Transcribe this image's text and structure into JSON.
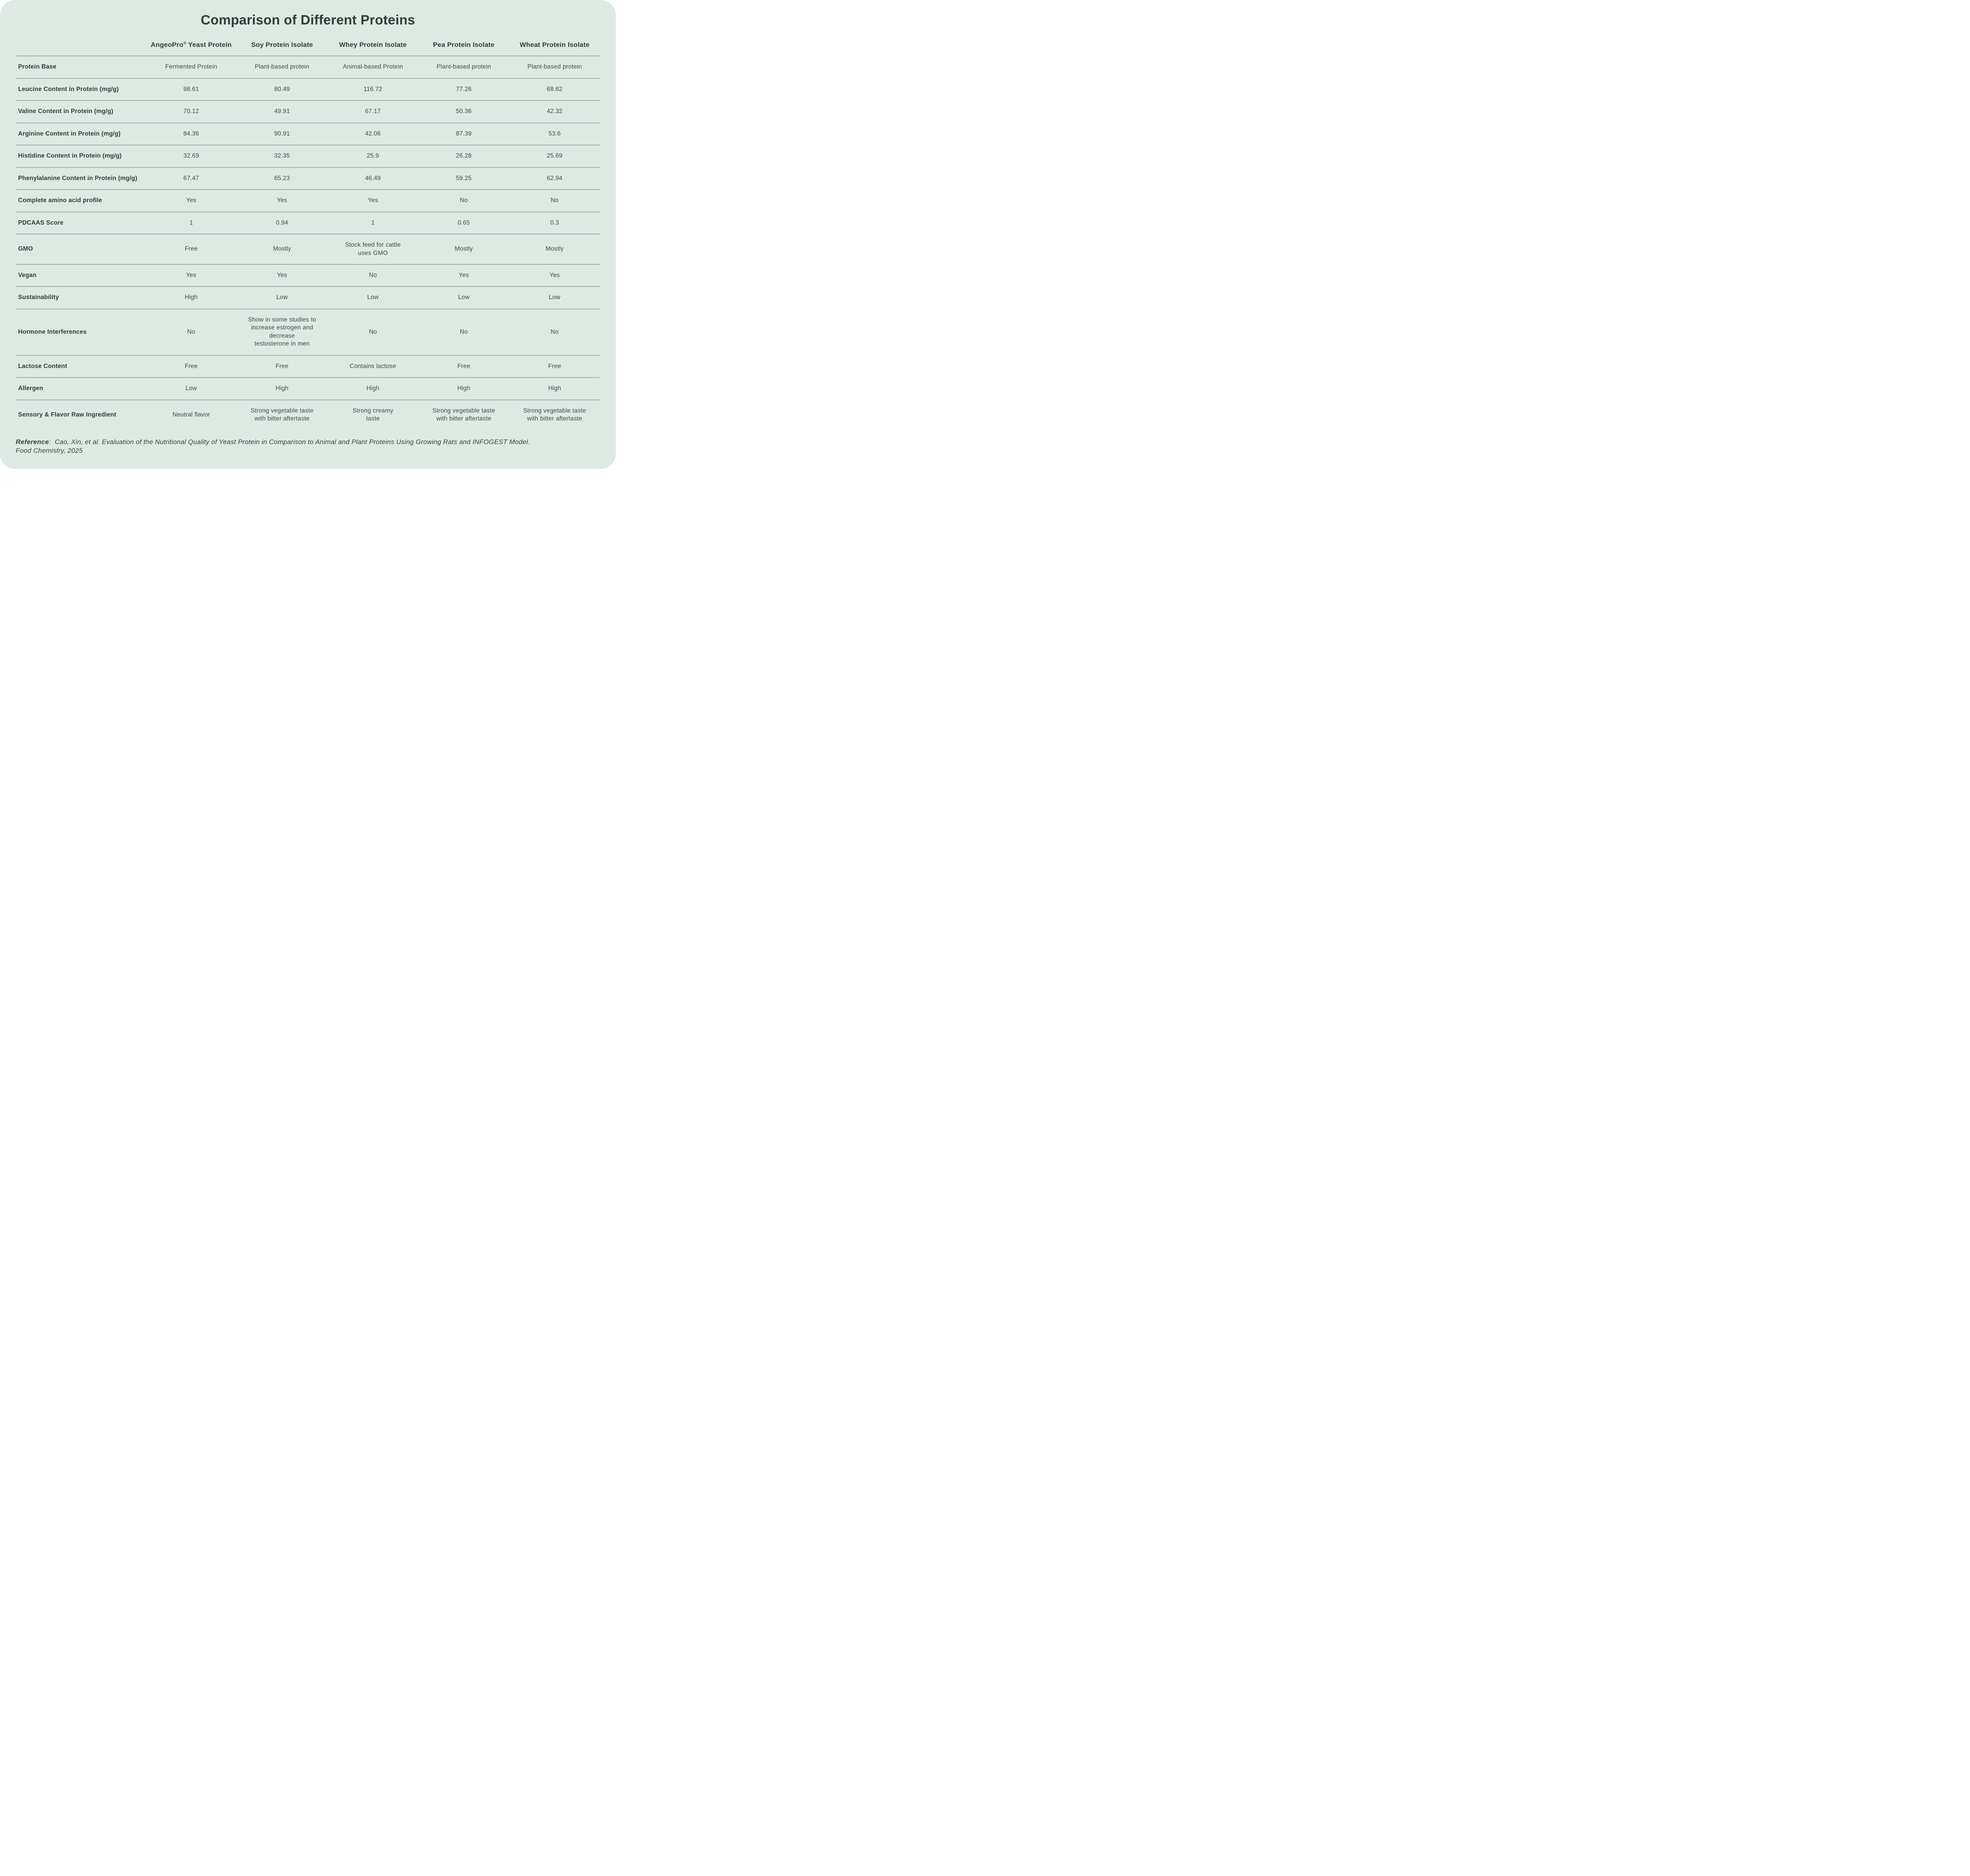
{
  "page": {
    "title": "Comparison of Different Proteins"
  },
  "colors": {
    "card_background": "#dee9e4",
    "page_background": "#ffffff",
    "heading_text": "#2e3e37",
    "body_text": "#3d4c45",
    "divider": "#a9b0ac"
  },
  "table": {
    "columns": [
      "AngeoPro® Yeast Protein",
      "Soy Protein Isolate",
      "Whey Protein Isolate",
      "Pea Protein Isolate",
      "Wheat Protein Isolate"
    ],
    "rows": [
      {
        "label": "Protein Base",
        "values": [
          "Fermented Protein",
          "Plant-based protein",
          "Animal-based Protein",
          "Plant-based protein",
          "Plant-based protein"
        ]
      },
      {
        "label": "Leucine Content in Protein (mg/g)",
        "values": [
          "98.61",
          "80.49",
          "116.72",
          "77.26",
          "68.62"
        ]
      },
      {
        "label": "Valine Content in Protein (mg/g)",
        "values": [
          "70.12",
          "49.91",
          "67.17",
          "50.36",
          "42.32"
        ]
      },
      {
        "label": "Arginine Content in Protein (mg/g)",
        "values": [
          "84.36",
          "90.91",
          "42.06",
          "87.39",
          "53.6"
        ]
      },
      {
        "label": "Histidine Content in Protein (mg/g)",
        "values": [
          "32.69",
          "32.35",
          "25.9",
          "26.28",
          "25.69"
        ]
      },
      {
        "label": "Phenylalanine Content in Protein (mg/g)",
        "values": [
          "67.47",
          "65.23",
          "46.49",
          "59.25",
          "62.94"
        ]
      },
      {
        "label": "Complete amino acid profile",
        "values": [
          "Yes",
          "Yes",
          "Yes",
          "No",
          "No"
        ]
      },
      {
        "label": "PDCAAS Score",
        "values": [
          "1",
          "0.94",
          "1",
          "0.65",
          "0.3"
        ]
      },
      {
        "label": "GMO",
        "values": [
          "Free",
          "Mostly",
          "Stock feed for cattle\nuses GMO",
          "Mostly",
          "Mostly"
        ]
      },
      {
        "label": "Vegan",
        "values": [
          "Yes",
          "Yes",
          "No",
          "Yes",
          "Yes"
        ]
      },
      {
        "label": "Sustainability",
        "values": [
          "High",
          "Low",
          "Low",
          "Low",
          "Low"
        ]
      },
      {
        "label": "Hormone Interferences",
        "values": [
          "No",
          "Show in some studies to\nincrease estrogen and decrease\ntestosterone in men",
          "No",
          "No",
          "No"
        ]
      },
      {
        "label": "Lactose Content",
        "values": [
          "Free",
          "Free",
          "Contains lactose",
          "Free",
          "Free"
        ]
      },
      {
        "label": "Allergen",
        "values": [
          "Low",
          "High",
          "High",
          "High",
          "High"
        ]
      },
      {
        "label": "Sensory & Flavor Raw Ingredient",
        "values": [
          "Neutral flavor",
          "Strong vegetable taste\nwith bitter aftertaste",
          "Strong creamy\ntaste",
          "Strong vegetable taste\nwith bitter aftertaste",
          "Strong vegetable taste\nwith bitter aftertaste"
        ]
      }
    ]
  },
  "reference": {
    "label": "Reference",
    "separator": ":",
    "text": "Cao, Xin, et al. Evaluation of the Nutritional Quality of Yeast Protein in Comparison to Animal and Plant Proteins Using Growing Rats and INFOGEST Model.\nFood Chemistry, 2025"
  }
}
